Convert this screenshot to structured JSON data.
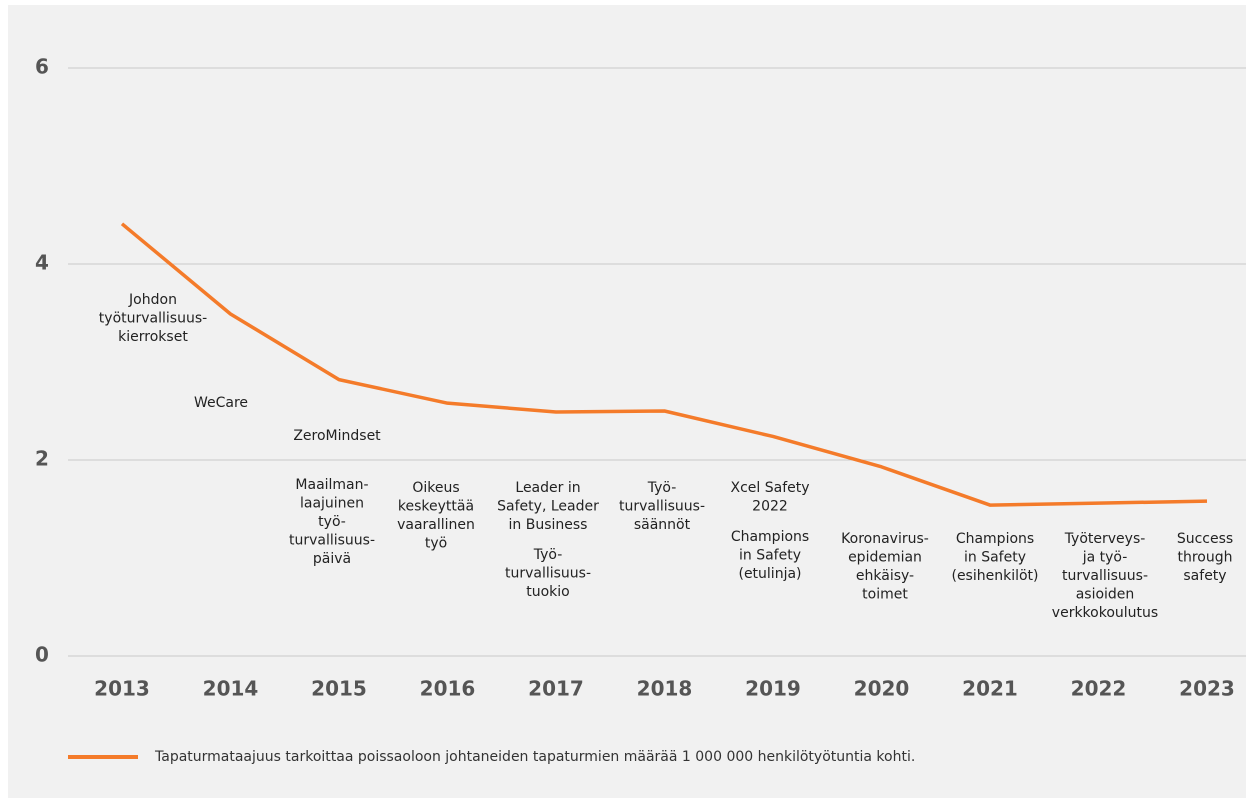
{
  "chart_data": {
    "type": "line",
    "categories": [
      "2013",
      "2014",
      "2015",
      "2016",
      "2017",
      "2018",
      "2019",
      "2020",
      "2021",
      "2022",
      "2023"
    ],
    "series": [
      {
        "name": "Tapaturmataajuus tarkoittaa poissaoloon johtaneiden tapaturmien määrää 1 000 000 henkilötyötuntia kohti.",
        "color": "#f47b2a",
        "values": [
          4.41,
          3.49,
          2.82,
          2.58,
          2.49,
          2.5,
          2.24,
          1.93,
          1.54,
          1.56,
          1.58
        ]
      }
    ],
    "ylim": [
      0,
      6
    ],
    "yticks": [
      0,
      2,
      4,
      6
    ],
    "grid": true,
    "annotations": [
      [
        "Johdon",
        "työturvallisuus-",
        "kierrokset"
      ],
      [
        "WeCare"
      ],
      [
        "ZeroMindset"
      ],
      [
        "Maailman-",
        "laajuinen",
        "työ-",
        "turvallisuus-",
        "päivä"
      ],
      [
        "Oikeus",
        "keskeyttää",
        "vaarallinen",
        "työ"
      ],
      [
        "Leader in",
        "Safety, Leader",
        "in Business"
      ],
      [
        "Työ-",
        "turvallisuus-",
        "tuokio"
      ],
      [
        "Työ-",
        "turvallisuus-",
        "säännöt"
      ],
      [
        "Xcel Safety",
        "2022"
      ],
      [
        "Champions",
        "in Safety",
        "(etulinja)"
      ],
      [
        "Koronavirus-",
        "epidemian",
        "ehkäisy-",
        "toimet"
      ],
      [
        "Champions",
        "in Safety",
        "(esihenkilöt)"
      ],
      [
        "Työterveys-",
        "ja työ-",
        "turvallisuus-",
        "asioiden",
        "verkkokoulutus"
      ],
      [
        "Success",
        "through",
        "safety"
      ]
    ]
  }
}
